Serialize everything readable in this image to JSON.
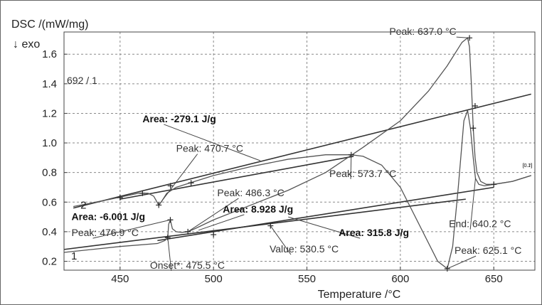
{
  "chart_data": {
    "type": "line",
    "ylabel": "DSC /(mW/mg)",
    "ylabel_sub": "↓ exo",
    "xlabel": "Temperature /°C",
    "xlim": [
      420,
      672
    ],
    "ylim": [
      0.14,
      1.75
    ],
    "xticks": [
      450,
      500,
      550,
      600,
      650
    ],
    "yticks": [
      0.2,
      0.4,
      0.6,
      0.8,
      1.0,
      1.2,
      1.4,
      1.6
    ],
    "ytick_labels": [
      "0.2",
      "0.4",
      "0.6",
      "0.8",
      "1.0",
      "1.2",
      "1.4",
      "1.6"
    ],
    "grid": true,
    "sample_label": "692 / 1",
    "series": [
      {
        "curve_label": "2",
        "end_tag": "[0.2]",
        "x": [
          425,
          445,
          460,
          465,
          468,
          470.7,
          472,
          475,
          480,
          490,
          500,
          520,
          540,
          560,
          573.7,
          580,
          590,
          600,
          610,
          620,
          625.1,
          628,
          631,
          634,
          636,
          637.5,
          639,
          640.2,
          642,
          645,
          650,
          660,
          670
        ],
        "y": [
          0.57,
          0.62,
          0.66,
          0.66,
          0.64,
          0.58,
          0.6,
          0.66,
          0.7,
          0.74,
          0.78,
          0.84,
          0.89,
          0.92,
          0.92,
          0.91,
          0.85,
          0.7,
          0.45,
          0.2,
          0.15,
          0.3,
          0.7,
          1.15,
          1.22,
          1.1,
          0.9,
          0.76,
          0.72,
          0.71,
          0.72,
          0.74,
          0.78
        ]
      },
      {
        "curve_label": "1",
        "end_tag": "[0.1]",
        "x": [
          420,
          450,
          470,
          474,
          475.5,
          476,
          476.9,
          478,
          480,
          483,
          486.3,
          490,
          500,
          520,
          540,
          560,
          580,
          600,
          615,
          625,
          630,
          633,
          635,
          636,
          637,
          638,
          639,
          640,
          641,
          643,
          646,
          650,
          660,
          670
        ],
        "y": [
          0.26,
          0.3,
          0.32,
          0.34,
          0.36,
          0.45,
          0.48,
          0.42,
          0.4,
          0.395,
          0.4,
          0.42,
          0.48,
          0.58,
          0.68,
          0.8,
          0.97,
          1.15,
          1.35,
          1.52,
          1.62,
          1.68,
          1.7,
          1.71,
          1.65,
          1.4,
          1.1,
          0.9,
          0.8,
          0.74,
          0.72,
          0.72,
          0.74,
          0.78
        ]
      }
    ],
    "baselines": [
      {
        "x": [
          425,
          670
        ],
        "y": [
          0.56,
          1.33
        ]
      },
      {
        "x": [
          450,
          575
        ],
        "y": [
          0.62,
          0.91
        ]
      },
      {
        "x": [
          470,
          650
        ],
        "y": [
          0.34,
          0.7
        ]
      },
      {
        "x": [
          420,
          635
        ],
        "y": [
          0.28,
          0.62
        ]
      }
    ],
    "markers": [
      {
        "x": 450,
        "y": 0.63
      },
      {
        "x": 462,
        "y": 0.66
      },
      {
        "x": 470.7,
        "y": 0.58
      },
      {
        "x": 477,
        "y": 0.71
      },
      {
        "x": 488,
        "y": 0.73
      },
      {
        "x": 573.7,
        "y": 0.92
      },
      {
        "x": 637,
        "y": 1.71
      },
      {
        "x": 640,
        "y": 1.25
      },
      {
        "x": 639,
        "y": 1.1
      },
      {
        "x": 650,
        "y": 0.72
      },
      {
        "x": 625.1,
        "y": 0.15
      },
      {
        "x": 476.9,
        "y": 0.48
      },
      {
        "x": 475.5,
        "y": 0.36
      },
      {
        "x": 486.3,
        "y": 0.4
      },
      {
        "x": 500,
        "y": 0.38
      },
      {
        "x": 530.5,
        "y": 0.44
      }
    ],
    "annotations": [
      {
        "text": "Peak: 637.0 °C",
        "bold": false,
        "x": 630,
        "y": 1.73,
        "anchor": "end",
        "tx": 637,
        "ty": 1.71
      },
      {
        "text": "Area: -279.1 J/g",
        "bold": true,
        "x": 462,
        "y": 1.14,
        "anchor": "start",
        "tx": 525,
        "ty": 0.88
      },
      {
        "text": "Peak: 470.7 °C",
        "bold": false,
        "x": 480,
        "y": 0.94,
        "anchor": "start",
        "tx": 470.7,
        "ty": 0.58
      },
      {
        "text": "Peak: 573.7 °C",
        "bold": false,
        "x": 562,
        "y": 0.77,
        "anchor": "start",
        "tx": 573.7,
        "ty": 0.92
      },
      {
        "text": "Peak: 486.3 °C",
        "bold": false,
        "x": 502,
        "y": 0.64,
        "anchor": "start",
        "tx": 486.3,
        "ty": 0.4
      },
      {
        "text": "Area: 8.928 J/g",
        "bold": true,
        "x": 505,
        "y": 0.53,
        "anchor": "start",
        "tx": 492,
        "ty": 0.41
      },
      {
        "text": "Area: -6.001 J/g",
        "bold": true,
        "x": 424,
        "y": 0.48,
        "anchor": "start",
        "tx": 0,
        "ty": 0
      },
      {
        "text": "Peak: 476.9 °C",
        "bold": false,
        "x": 424,
        "y": 0.37,
        "anchor": "start",
        "tx": 476.9,
        "ty": 0.48
      },
      {
        "text": "Area: 315.8 J/g",
        "bold": true,
        "x": 567,
        "y": 0.37,
        "anchor": "start",
        "tx": 540,
        "ty": 0.5
      },
      {
        "text": "Value: 530.5 °C",
        "bold": false,
        "x": 530,
        "y": 0.26,
        "anchor": "start",
        "tx": 530.5,
        "ty": 0.44
      },
      {
        "text": "Onset*: 475.5 °C",
        "bold": false,
        "x": 466,
        "y": 0.15,
        "anchor": "start",
        "tx": 475.5,
        "ty": 0.36
      },
      {
        "text": "End: 640.2 °C",
        "bold": false,
        "x": 626,
        "y": 0.43,
        "anchor": "start",
        "tx": 640.2,
        "ty": 0.76
      },
      {
        "text": "Peak: 625.1 °C",
        "bold": false,
        "x": 629,
        "y": 0.25,
        "anchor": "start",
        "tx": 625.1,
        "ty": 0.15
      }
    ]
  }
}
